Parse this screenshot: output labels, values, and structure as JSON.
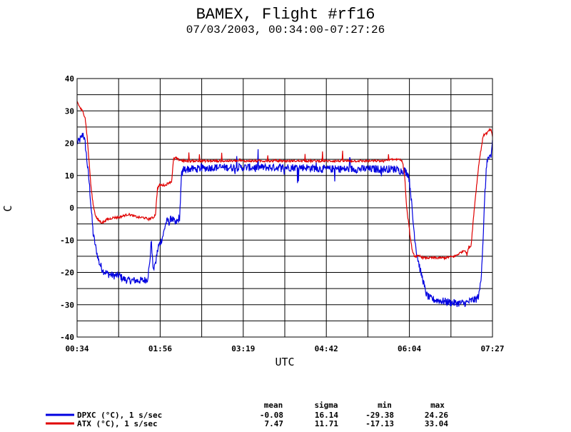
{
  "chart_data": {
    "type": "line",
    "title": "BAMEX, Flight #rf16",
    "subtitle": "07/03/2003, 00:34:00-07:27:26",
    "xlabel": "UTC",
    "ylabel": "C",
    "x_ticks": [
      "00:34",
      "01:56",
      "03:19",
      "04:42",
      "06:04",
      "07:27"
    ],
    "x_range_minutes": [
      34,
      447.43
    ],
    "ylim": [
      -40,
      40
    ],
    "y_ticks": [
      40,
      30,
      20,
      10,
      0,
      -10,
      -20,
      -30,
      -40
    ],
    "grid": true,
    "series": [
      {
        "name": "DPXC (°C), 1 s/sec",
        "color": "#0000e0",
        "noise": 1.2,
        "x_minutes": [
          34,
          38,
          40,
          42,
          44,
          46,
          48,
          50,
          53,
          56,
          60,
          65,
          70,
          76,
          80,
          85,
          88,
          92,
          96,
          100,
          104,
          106,
          108,
          109,
          110,
          111,
          112,
          113,
          115,
          118,
          120,
          122,
          124,
          126,
          128,
          130,
          132,
          134,
          136,
          138,
          140,
          150,
          170,
          200,
          230,
          260,
          280,
          290,
          300,
          320,
          340,
          350,
          355,
          360,
          362,
          364,
          366,
          368,
          370,
          372,
          374,
          376,
          378,
          380,
          382,
          385,
          390,
          400,
          410,
          420,
          425,
          428,
          430,
          432,
          434,
          436,
          438,
          440,
          442,
          444,
          446,
          447.4
        ],
        "values": [
          20,
          21.5,
          23,
          20,
          14,
          8,
          0,
          -8,
          -13,
          -17,
          -19.5,
          -20.5,
          -21,
          -21,
          -22,
          -22.5,
          -22.5,
          -22.5,
          -22.5,
          -22.5,
          -22,
          -18,
          -10,
          -16,
          -20,
          -17,
          -18,
          -15,
          -12,
          -10,
          -8,
          -5,
          -4,
          -4.5,
          -3,
          -4,
          -5,
          -4,
          -3,
          10,
          12,
          12,
          12.5,
          12.5,
          12.5,
          12.5,
          12,
          12,
          12,
          12,
          12,
          12,
          11.5,
          11.5,
          11,
          10,
          5,
          -3,
          -9,
          -14,
          -17,
          -20,
          -22,
          -25,
          -27,
          -28,
          -28.5,
          -29,
          -29.5,
          -29.5,
          -29,
          -28.5,
          -28.5,
          -28,
          -27,
          -22,
          -10,
          5,
          15,
          15.5,
          15,
          21
        ]
      },
      {
        "name": "ATX (°C), 1 s/sec",
        "color": "#e00000",
        "noise": 0.35,
        "x_minutes": [
          34,
          36,
          38,
          40,
          42,
          44,
          46,
          48,
          50,
          52,
          54,
          56,
          58,
          60,
          62,
          64,
          66,
          70,
          75,
          80,
          85,
          90,
          95,
          100,
          105,
          110,
          112,
          114,
          116,
          118,
          120,
          122,
          124,
          126,
          128,
          130,
          132,
          134,
          140,
          150,
          170,
          200,
          230,
          260,
          280,
          300,
          320,
          340,
          350,
          354,
          356,
          358,
          360,
          362,
          364,
          366,
          368,
          370,
          372,
          374,
          376,
          378,
          380,
          390,
          400,
          410,
          420,
          422,
          424,
          426,
          428,
          430,
          432,
          434,
          436,
          438,
          440,
          442,
          444,
          446,
          447.4
        ],
        "values": [
          33,
          31.5,
          30.5,
          29.5,
          28,
          22,
          14,
          6,
          1,
          -2,
          -3.5,
          -4,
          -4.5,
          -4.5,
          -4,
          -3.5,
          -3.5,
          -3,
          -3,
          -2.5,
          -2,
          -2.5,
          -3,
          -3,
          -3.5,
          -3,
          -2,
          6,
          7,
          7,
          7,
          7,
          7.5,
          8,
          8,
          15,
          15.5,
          15,
          14.5,
          14.5,
          14.5,
          14.5,
          14.5,
          14.5,
          14.5,
          14.5,
          14.5,
          14.5,
          15,
          15,
          15,
          14,
          10,
          0,
          -5,
          -10,
          -14,
          -15,
          -15,
          -15,
          -15,
          -15.5,
          -15.5,
          -15.5,
          -15.5,
          -15,
          -13,
          -14.5,
          -12,
          -12,
          -5,
          2,
          8,
          14,
          18,
          22,
          23,
          23,
          24,
          24,
          22
        ]
      }
    ]
  },
  "stats": {
    "headers": [
      "mean",
      "sigma",
      "min",
      "max"
    ],
    "rows": [
      {
        "label": "DPXC (°C), 1 s/sec",
        "color": "#0000e0",
        "mean": "-0.08",
        "sigma": "16.14",
        "min": "-29.38",
        "max": "24.26"
      },
      {
        "label": "ATX (°C), 1 s/sec",
        "color": "#e00000",
        "mean": "7.47",
        "sigma": "11.71",
        "min": "-17.13",
        "max": "33.04"
      }
    ]
  }
}
